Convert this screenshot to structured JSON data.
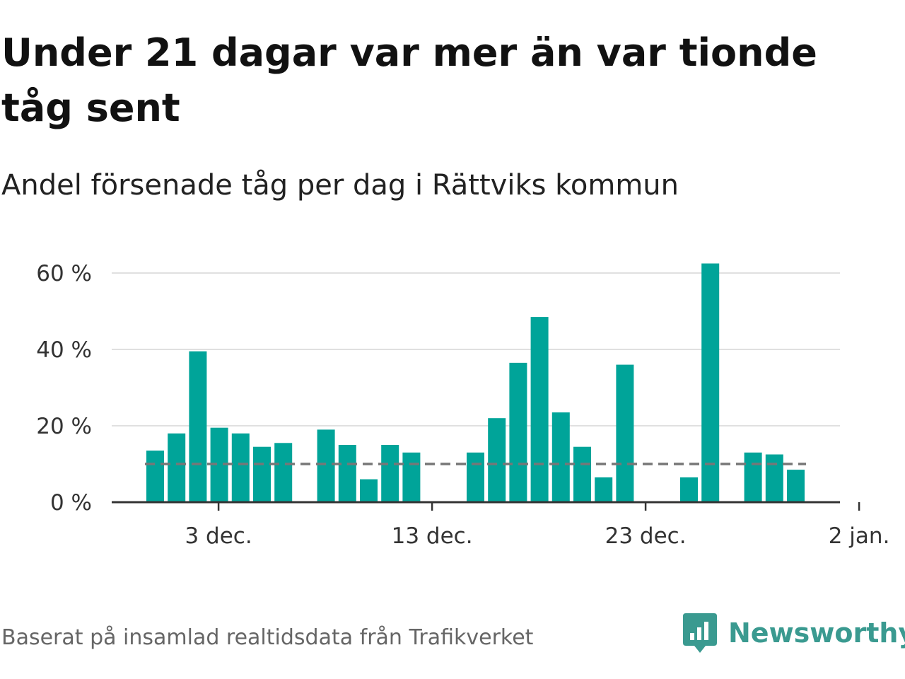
{
  "title": "Under 21 dagar var mer än var tionde tåg sent",
  "subtitle": "Andel försenade tåg per dag i Rättviks kommun",
  "footer": "Baserat på insamlad realtidsdata från Trafikverket",
  "brand": {
    "name": "Newsworthy",
    "icon": "newsworthy-logo-icon",
    "color": "#3a9a90"
  },
  "colors": {
    "bar": "#00a499",
    "reference_line": "#777777",
    "grid": "#e0e0e0",
    "axis": "#333333"
  },
  "chart_data": {
    "type": "bar",
    "title": "Under 21 dagar var mer än var tionde tåg sent",
    "subtitle": "Andel försenade tåg per dag i Rättviks kommun",
    "xlabel": "",
    "ylabel": "",
    "x_axis": "date",
    "ylim": [
      0,
      65
    ],
    "y_ticks": [
      0,
      20,
      40,
      60
    ],
    "y_tick_labels": [
      "0 %",
      "20 %",
      "40 %",
      "60 %"
    ],
    "x_ticks": [
      "3 dec.",
      "13 dec.",
      "23 dec.",
      "2 jan."
    ],
    "grid": true,
    "reference_line": 10,
    "dates": [
      "30 nov.",
      "1 dec.",
      "2 dec.",
      "3 dec.",
      "4 dec.",
      "5 dec.",
      "6 dec.",
      "7 dec.",
      "8 dec.",
      "9 dec.",
      "10 dec.",
      "11 dec.",
      "12 dec.",
      "13 dec.",
      "14 dec.",
      "15 dec.",
      "16 dec.",
      "17 dec.",
      "18 dec.",
      "19 dec.",
      "20 dec.",
      "21 dec.",
      "22 dec.",
      "23 dec.",
      "24 dec.",
      "25 dec.",
      "26 dec.",
      "27 dec.",
      "28 dec.",
      "29 dec.",
      "30 dec.",
      "31 dec.",
      "1 jan."
    ],
    "values": [
      13.5,
      18,
      39.5,
      19.5,
      18,
      14.5,
      15.5,
      null,
      19,
      15,
      6,
      15,
      13,
      null,
      null,
      13,
      22,
      36.5,
      48.5,
      23.5,
      14.5,
      6.5,
      36,
      null,
      null,
      6.5,
      62.5,
      null,
      13,
      12.5,
      8.5,
      null,
      null
    ]
  }
}
